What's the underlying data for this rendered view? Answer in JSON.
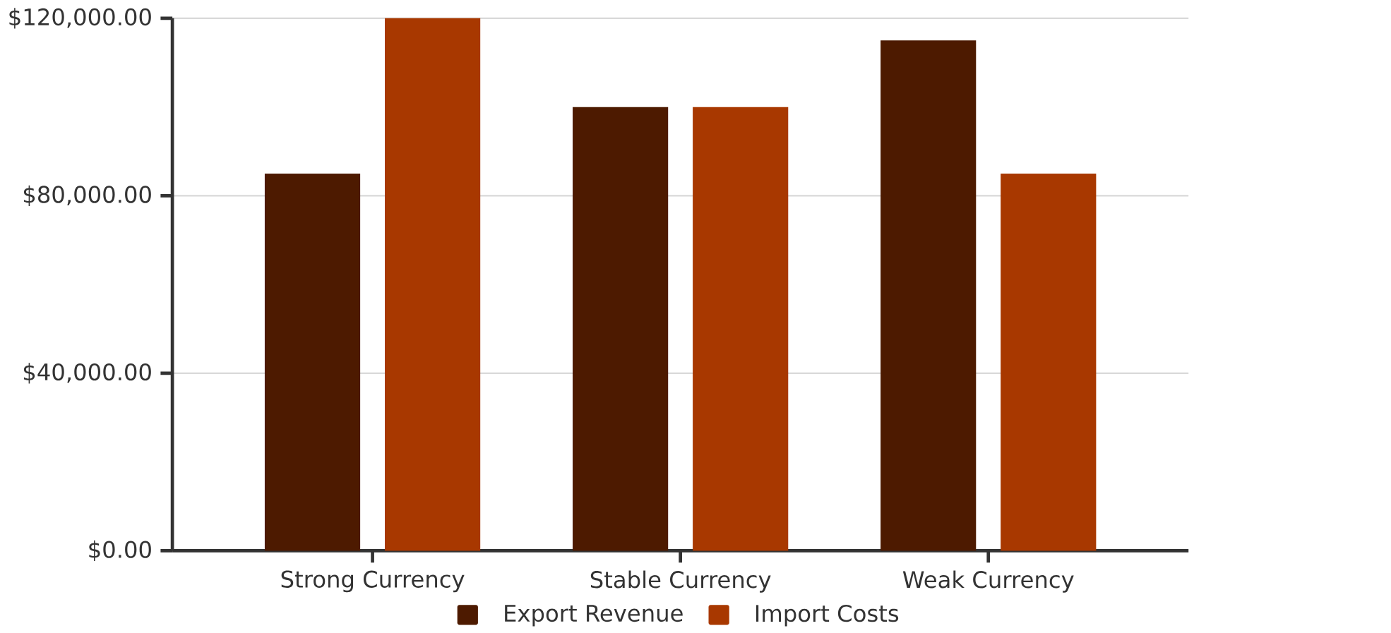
{
  "chart_data": {
    "type": "bar",
    "categories": [
      "Strong Currency",
      "Stable Currency",
      "Weak Currency"
    ],
    "series": [
      {
        "name": "Export Revenue",
        "color": "#4d1a00",
        "values": [
          85000,
          100000,
          115000
        ]
      },
      {
        "name": "Import Costs",
        "color": "#a83800",
        "values": [
          120000,
          100000,
          85000
        ]
      }
    ],
    "ylim": [
      0,
      120000
    ],
    "yticks": [
      {
        "value": 0,
        "label": "$0.00"
      },
      {
        "value": 40000,
        "label": "$40,000.00"
      },
      {
        "value": 80000,
        "label": "$80,000.00"
      },
      {
        "value": 120000,
        "label": "$120,000.00"
      }
    ],
    "grid": "y",
    "legend": "bottom"
  }
}
